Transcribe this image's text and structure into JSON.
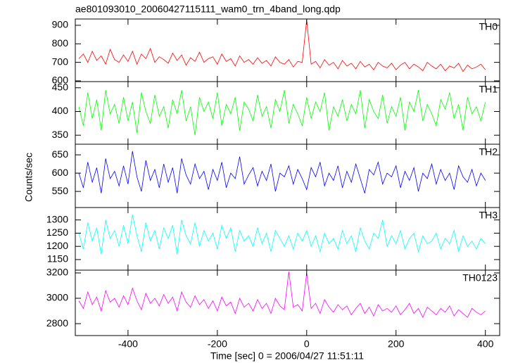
{
  "chart_data": {
    "type": "line",
    "title": "ae801093010_20060427115111_wam0_trn_4band_long.qdp",
    "xlabel": "Time [sec] 0 = 2006/04/27 11:51:11",
    "ylabel": "Counts/sec",
    "xlim": [
      -518,
      432
    ],
    "xticks": [
      -400,
      -200,
      0,
      200,
      400
    ],
    "x": [
      -510,
      -500,
      -490,
      -480,
      -470,
      -460,
      -450,
      -440,
      -430,
      -420,
      -410,
      -400,
      -390,
      -380,
      -370,
      -360,
      -350,
      -340,
      -330,
      -320,
      -310,
      -300,
      -290,
      -280,
      -270,
      -260,
      -250,
      -240,
      -230,
      -220,
      -210,
      -200,
      -190,
      -180,
      -170,
      -160,
      -150,
      -140,
      -130,
      -120,
      -110,
      -100,
      -90,
      -80,
      -70,
      -60,
      -50,
      -40,
      -30,
      -20,
      -10,
      0,
      10,
      20,
      30,
      40,
      50,
      60,
      70,
      80,
      90,
      100,
      110,
      120,
      130,
      140,
      150,
      160,
      170,
      180,
      190,
      200,
      210,
      220,
      230,
      240,
      250,
      260,
      270,
      280,
      290,
      300,
      310,
      320,
      330,
      340,
      350,
      360,
      370,
      380,
      390,
      400
    ],
    "series": [
      {
        "name": "TH0",
        "color": "#ff0000",
        "ylim": [
          596,
          934
        ],
        "yticks": [
          600,
          700,
          800,
          900
        ],
        "values": [
          720,
          745,
          700,
          760,
          710,
          735,
          690,
          770,
          715,
          700,
          740,
          705,
          760,
          690,
          745,
          720,
          775,
          700,
          730,
          715,
          695,
          750,
          710,
          740,
          685,
          725,
          705,
          755,
          700,
          720,
          730,
          690,
          745,
          705,
          720,
          680,
          735,
          700,
          715,
          690,
          725,
          695,
          710,
          680,
          730,
          700,
          690,
          715,
          675,
          705,
          700,
          930,
          690,
          705,
          670,
          715,
          685,
          700,
          665,
          710,
          680,
          695,
          665,
          705,
          675,
          690,
          660,
          700,
          680,
          670,
          695,
          660,
          685,
          700,
          665,
          690,
          675,
          655,
          700,
          680,
          665,
          690,
          655,
          680,
          670,
          695,
          650,
          685,
          665,
          675,
          690,
          660
        ]
      },
      {
        "name": "TH1",
        "color": "#00ff00",
        "ylim": [
          331,
          463
        ],
        "yticks": [
          350,
          400,
          450
        ],
        "values": [
          410,
          370,
          440,
          385,
          425,
          360,
          445,
          395,
          415,
          375,
          430,
          380,
          420,
          355,
          440,
          400,
          375,
          435,
          390,
          410,
          365,
          425,
          395,
          445,
          380,
          410,
          350,
          430,
          400,
          420,
          385,
          440,
          370,
          415,
          395,
          430,
          360,
          420,
          405,
          380,
          435,
          390,
          410,
          365,
          425,
          400,
          445,
          375,
          415,
          395,
          370,
          430,
          385,
          420,
          400,
          440,
          360,
          410,
          390,
          425,
          380,
          415,
          395,
          445,
          365,
          425,
          400,
          385,
          435,
          375,
          410,
          390,
          430,
          360,
          420,
          400,
          445,
          380,
          415,
          395,
          370,
          425,
          405,
          440,
          385,
          415,
          360,
          430,
          395,
          410,
          380,
          420
        ]
      },
      {
        "name": "TH2",
        "color": "#0000ff",
        "ylim": [
          506,
          679
        ],
        "yticks": [
          550,
          600,
          650
        ],
        "values": [
          600,
          560,
          630,
          575,
          615,
          545,
          640,
          585,
          605,
          565,
          620,
          570,
          660,
          590,
          550,
          635,
          580,
          610,
          560,
          625,
          575,
          615,
          545,
          640,
          595,
          570,
          625,
          585,
          605,
          555,
          610,
          580,
          630,
          560,
          600,
          585,
          645,
          570,
          595,
          615,
          565,
          605,
          580,
          625,
          550,
          600,
          590,
          620,
          570,
          610,
          585,
          555,
          615,
          590,
          630,
          565,
          600,
          580,
          620,
          560,
          605,
          575,
          625,
          585,
          545,
          610,
          595,
          630,
          570,
          600,
          590,
          620,
          560,
          605,
          580,
          615,
          550,
          600,
          585,
          625,
          570,
          610,
          580,
          600,
          555,
          620,
          590,
          575,
          610,
          565,
          600,
          580
        ]
      },
      {
        "name": "TH3",
        "color": "#00ffff",
        "ylim": [
          1110,
          1347
        ],
        "yticks": [
          1150,
          1200,
          1250,
          1300
        ],
        "values": [
          1250,
          1190,
          1290,
          1220,
          1270,
          1170,
          1300,
          1230,
          1260,
          1200,
          1280,
          1210,
          1320,
          1240,
          1180,
          1290,
          1220,
          1260,
          1190,
          1270,
          1230,
          1280,
          1170,
          1300,
          1240,
          1210,
          1290,
          1200,
          1260,
          1220,
          1250,
          1190,
          1280,
          1230,
          1270,
          1180,
          1260,
          1220,
          1240,
          1200,
          1270,
          1210,
          1250,
          1180,
          1260,
          1230,
          1200,
          1240,
          1190,
          1250,
          1220,
          1260,
          1200,
          1240,
          1180,
          1250,
          1210,
          1230,
          1190,
          1260,
          1210,
          1240,
          1180,
          1270,
          1220,
          1190,
          1250,
          1230,
          1300,
          1200,
          1240,
          1210,
          1260,
          1190,
          1230,
          1250,
          1180,
          1240,
          1210,
          1220,
          1250,
          1190,
          1230,
          1210,
          1260,
          1180,
          1240,
          1200,
          1220,
          1190,
          1230,
          1210
        ]
      },
      {
        "name": "TH0123",
        "color": "#ff00ff",
        "ylim": [
          2706,
          3222
        ],
        "yticks": [
          2800,
          3000,
          3200
        ],
        "values": [
          2980,
          2920,
          3050,
          2950,
          3010,
          2900,
          3060,
          2970,
          3000,
          2930,
          3020,
          2950,
          3080,
          2980,
          2910,
          3040,
          2960,
          3000,
          2940,
          3030,
          2960,
          3010,
          2900,
          3050,
          2970,
          2930,
          3020,
          2950,
          2990,
          2920,
          2980,
          2900,
          3010,
          2940,
          2970,
          2880,
          3000,
          2930,
          2960,
          2900,
          2990,
          2920,
          2960,
          2880,
          3000,
          2940,
          2910,
          3210,
          2930,
          2950,
          2900,
          3200,
          2920,
          2960,
          2880,
          2990,
          2930,
          2890,
          2950,
          2910,
          2940,
          2870,
          2920,
          2960,
          2880,
          2930,
          2860,
          2950,
          2900,
          2920,
          2890,
          2940,
          2870,
          2910,
          2960,
          2880,
          2920,
          2850,
          2930,
          2900,
          2870,
          2920,
          2890,
          2940,
          2860,
          2910,
          2880,
          2850,
          2920,
          2890,
          2870,
          2900
        ]
      }
    ]
  }
}
